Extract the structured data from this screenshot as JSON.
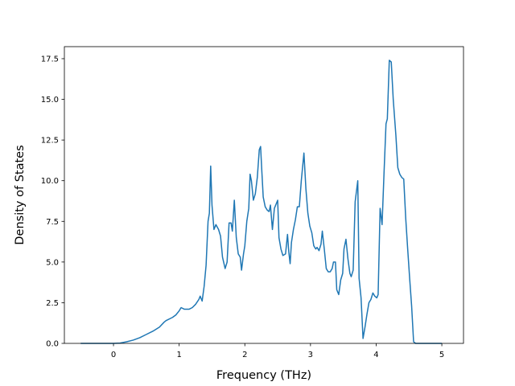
{
  "chart_data": {
    "type": "line",
    "xlabel": "Frequency (THz)",
    "ylabel": "Density of States",
    "x": [
      -0.5,
      -0.25,
      0,
      0.1,
      0.2,
      0.3,
      0.4,
      0.5,
      0.6,
      0.7,
      0.77,
      0.8,
      0.9,
      0.95,
      1.0,
      1.03,
      1.08,
      1.15,
      1.2,
      1.25,
      1.3,
      1.32,
      1.35,
      1.38,
      1.41,
      1.44,
      1.46,
      1.48,
      1.5,
      1.53,
      1.56,
      1.6,
      1.63,
      1.66,
      1.7,
      1.73,
      1.76,
      1.79,
      1.81,
      1.84,
      1.87,
      1.9,
      1.93,
      1.95,
      1.98,
      2.0,
      2.03,
      2.06,
      2.08,
      2.1,
      2.13,
      2.16,
      2.19,
      2.22,
      2.24,
      2.26,
      2.28,
      2.31,
      2.34,
      2.37,
      2.39,
      2.42,
      2.45,
      2.48,
      2.5,
      2.52,
      2.55,
      2.58,
      2.62,
      2.65,
      2.67,
      2.69,
      2.71,
      2.74,
      2.77,
      2.8,
      2.83,
      2.86,
      2.9,
      2.93,
      2.96,
      2.99,
      3.02,
      3.05,
      3.08,
      3.1,
      3.13,
      3.16,
      3.18,
      3.21,
      3.24,
      3.27,
      3.3,
      3.33,
      3.35,
      3.38,
      3.4,
      3.43,
      3.46,
      3.49,
      3.51,
      3.54,
      3.57,
      3.6,
      3.62,
      3.65,
      3.68,
      3.72,
      3.74,
      3.77,
      3.8,
      3.83,
      3.86,
      3.89,
      3.92,
      3.95,
      3.98,
      4.01,
      4.03,
      4.06,
      4.09,
      4.12,
      4.15,
      4.17,
      4.2,
      4.23,
      4.26,
      4.3,
      4.33,
      4.36,
      4.39,
      4.42,
      4.45,
      4.48,
      4.51,
      4.54,
      4.57,
      4.6,
      4.8,
      5.0
    ],
    "series": [
      {
        "color": "#1f77b4",
        "values": [
          0,
          0,
          0,
          0.02,
          0.1,
          0.2,
          0.35,
          0.55,
          0.75,
          1.0,
          1.3,
          1.4,
          1.6,
          1.75,
          2.0,
          2.2,
          2.1,
          2.1,
          2.2,
          2.4,
          2.7,
          2.9,
          2.6,
          3.5,
          4.8,
          7.5,
          8.0,
          10.9,
          8.5,
          7.0,
          7.3,
          7.0,
          6.6,
          5.3,
          4.6,
          5.0,
          7.4,
          7.4,
          6.9,
          8.8,
          6.5,
          5.5,
          5.3,
          4.5,
          5.5,
          6.0,
          7.5,
          8.3,
          10.4,
          10.0,
          8.8,
          9.2,
          10.2,
          11.9,
          12.1,
          10.5,
          9.0,
          8.4,
          8.2,
          8.1,
          8.5,
          7.0,
          8.3,
          8.6,
          8.8,
          6.5,
          5.8,
          5.4,
          5.5,
          6.7,
          5.6,
          4.9,
          6.2,
          7.0,
          7.6,
          8.4,
          8.4,
          10.0,
          11.7,
          9.5,
          8.0,
          7.2,
          6.8,
          6.0,
          5.8,
          5.9,
          5.7,
          6.1,
          6.9,
          5.8,
          4.6,
          4.4,
          4.4,
          4.6,
          5.0,
          5.0,
          3.3,
          3.0,
          3.9,
          4.3,
          5.8,
          6.4,
          5.2,
          4.3,
          4.1,
          4.5,
          8.7,
          10.0,
          4.0,
          2.8,
          0.3,
          1.0,
          1.8,
          2.5,
          2.7,
          3.1,
          2.9,
          2.8,
          3.0,
          8.3,
          7.3,
          10.5,
          13.5,
          13.8,
          17.4,
          17.3,
          15.0,
          12.8,
          10.8,
          10.4,
          10.2,
          10.1,
          7.7,
          5.8,
          4.0,
          2.3,
          0.1,
          0,
          0,
          0
        ]
      }
    ],
    "xlim": [
      -0.748,
      5.33
    ],
    "ylim": [
      0,
      18.24
    ],
    "xticks": [
      0,
      1,
      2,
      3,
      4,
      5
    ],
    "yticks": [
      {
        "value": 0,
        "label": "0.0"
      },
      {
        "value": 2.5,
        "label": "2.5"
      },
      {
        "value": 5,
        "label": "5.0"
      },
      {
        "value": 7.5,
        "label": "7.5"
      },
      {
        "value": 10,
        "label": "10.0"
      },
      {
        "value": 12.5,
        "label": "12.5"
      },
      {
        "value": 15,
        "label": "15.0"
      },
      {
        "value": 17.5,
        "label": "17.5"
      }
    ]
  }
}
